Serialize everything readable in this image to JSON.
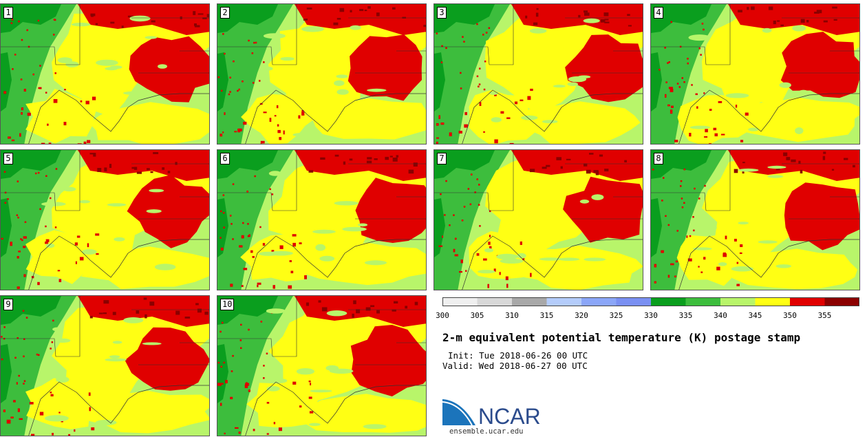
{
  "title": "2-m equivalent potential temperature (K) postage stamp",
  "init": "Init: Tue 2018-06-26 00 UTC",
  "valid": "Valid: Wed 2018-06-27 00 UTC",
  "logo_text": "NCAR",
  "url": "ensemble.ucar.edu",
  "members": [
    "1",
    "2",
    "3",
    "4",
    "5",
    "6",
    "7",
    "8",
    "9",
    "10"
  ],
  "colorbar": {
    "ticks": [
      "300",
      "305",
      "310",
      "315",
      "320",
      "325",
      "330",
      "335",
      "340",
      "345",
      "350",
      "355"
    ],
    "colors": [
      "#efefef",
      "#d8d8d8",
      "#a8a8a8",
      "#b4ccfa",
      "#8ba6f8",
      "#7a90f2",
      "#0a9e1e",
      "#3dbd3d",
      "#b8f56a",
      "#ffff14",
      "#e00000",
      "#8b0000"
    ]
  },
  "map_colors": {
    "dark_green": "#0a9e1e",
    "green": "#3dbd3d",
    "light_green": "#b8f56a",
    "yellow": "#ffff14",
    "red": "#e00000",
    "dark_red": "#8b0000"
  },
  "logo_colors": {
    "blue": "#1b74bb",
    "navy": "#2b4b8c"
  }
}
